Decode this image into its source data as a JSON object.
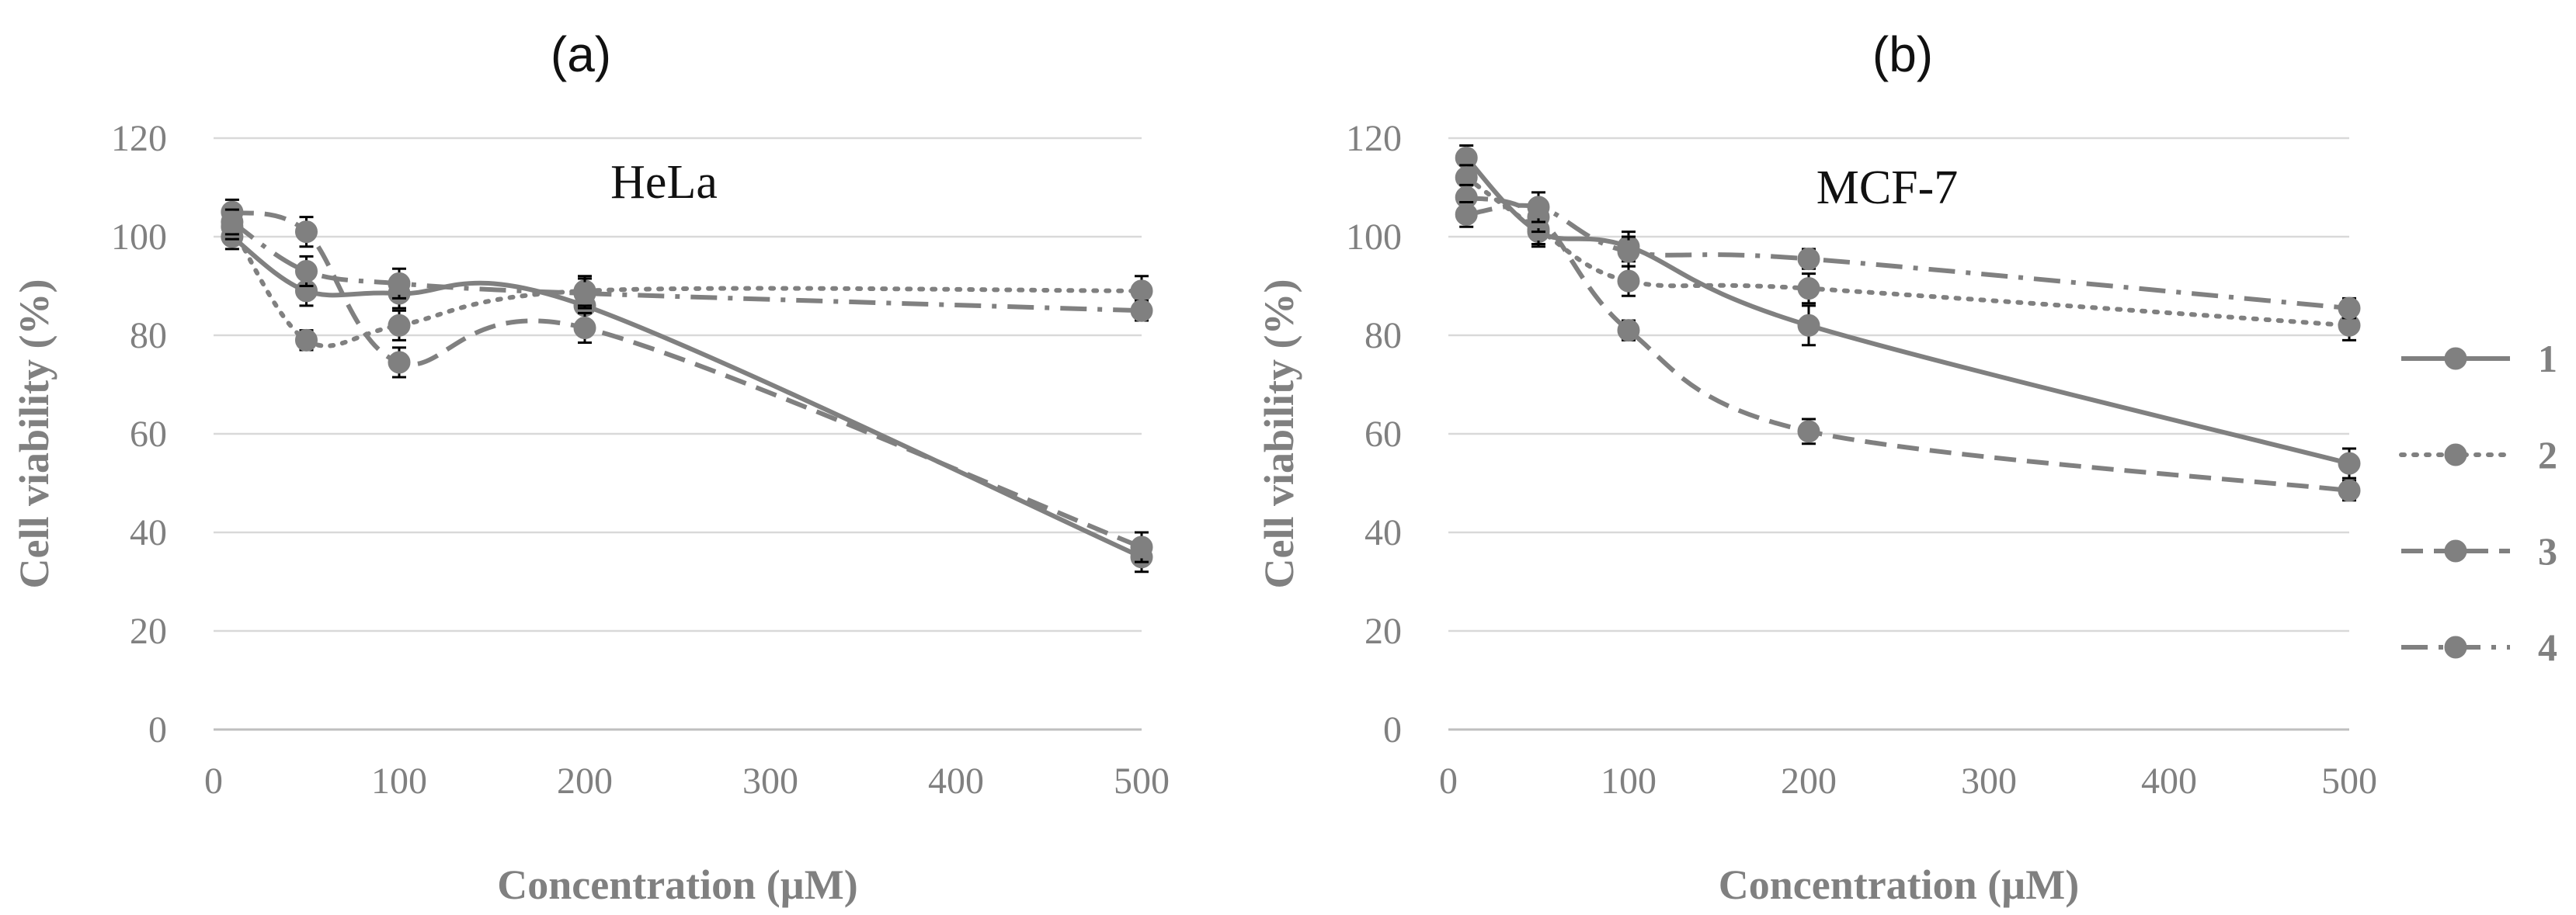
{
  "chart_data": [
    {
      "type": "line",
      "panel_label": "(a)",
      "title": "HeLa",
      "xlabel": "Concentration (µM)",
      "ylabel": "Cell viability (%)",
      "xlim": [
        0,
        500
      ],
      "ylim": [
        0,
        120
      ],
      "xticks": [
        0,
        100,
        200,
        300,
        400,
        500
      ],
      "yticks": [
        0,
        20,
        40,
        60,
        80,
        100,
        120
      ],
      "grid": true,
      "x": [
        10,
        50,
        100,
        200,
        500
      ],
      "series": [
        {
          "name": "1",
          "style": "solid",
          "values": [
            100,
            89,
            88.5,
            86,
            35
          ],
          "errors": [
            2.5,
            3,
            3,
            3,
            3
          ]
        },
        {
          "name": "2",
          "style": "dotted",
          "values": [
            102,
            79,
            82,
            89,
            89
          ],
          "errors": [
            2.5,
            2,
            3,
            3,
            3
          ]
        },
        {
          "name": "3",
          "style": "dashed",
          "values": [
            105,
            101,
            74.5,
            81.5,
            37
          ],
          "errors": [
            2.5,
            3,
            3,
            3,
            3
          ]
        },
        {
          "name": "4",
          "style": "dashdot",
          "values": [
            103,
            93,
            90.5,
            88.5,
            85
          ],
          "errors": [
            2.5,
            3,
            3,
            3,
            2
          ]
        }
      ]
    },
    {
      "type": "line",
      "panel_label": "(b)",
      "title": "MCF-7",
      "xlabel": "Concentration (µM)",
      "ylabel": "Cell viability (%)",
      "xlim": [
        0,
        500
      ],
      "ylim": [
        0,
        120
      ],
      "xticks": [
        0,
        100,
        200,
        300,
        400,
        500
      ],
      "yticks": [
        0,
        20,
        40,
        60,
        80,
        100,
        120
      ],
      "grid": true,
      "x": [
        10,
        50,
        100,
        200,
        500
      ],
      "series": [
        {
          "name": "1",
          "style": "solid",
          "values": [
            116,
            101,
            98,
            82,
            54
          ],
          "errors": [
            2.5,
            3,
            3,
            4,
            3
          ]
        },
        {
          "name": "2",
          "style": "dotted",
          "values": [
            112,
            101.5,
            91,
            89.5,
            82
          ],
          "errors": [
            2.5,
            3,
            3,
            3,
            3
          ]
        },
        {
          "name": "3",
          "style": "dashed",
          "values": [
            108,
            104,
            81,
            60.5,
            48.5
          ],
          "errors": [
            2.5,
            3,
            2,
            2.5,
            2
          ]
        },
        {
          "name": "4",
          "style": "dashdot",
          "values": [
            104.5,
            106,
            97,
            95.5,
            85.5
          ],
          "errors": [
            2.5,
            3,
            3,
            2,
            2
          ]
        }
      ]
    }
  ],
  "legend": {
    "position": "right",
    "items": [
      {
        "label": "1",
        "style": "solid"
      },
      {
        "label": "2",
        "style": "dotted"
      },
      {
        "label": "3",
        "style": "dashed"
      },
      {
        "label": "4",
        "style": "dashdot"
      }
    ]
  },
  "colors": {
    "series": "#808080",
    "grid": "#d9d9d9",
    "error": "#000000"
  }
}
